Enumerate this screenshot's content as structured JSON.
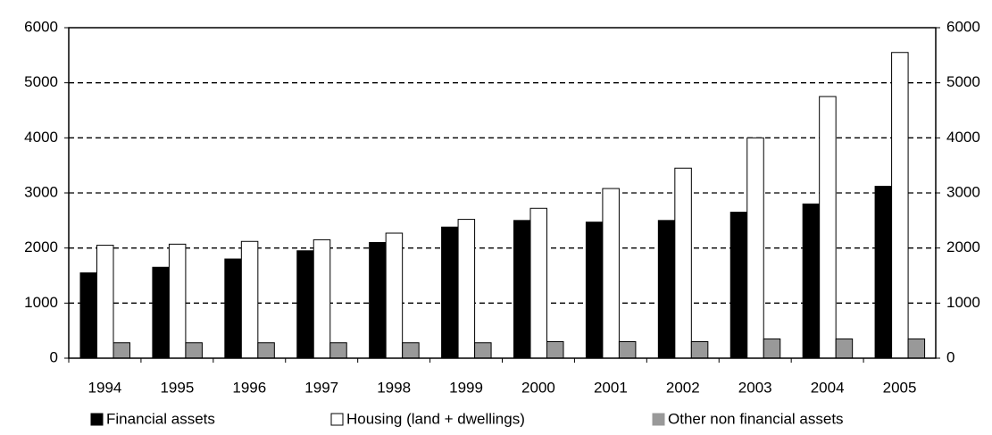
{
  "chart_data": {
    "type": "bar",
    "categories": [
      "1994",
      "1995",
      "1996",
      "1997",
      "1998",
      "1999",
      "2000",
      "2001",
      "2002",
      "2003",
      "2004",
      "2005"
    ],
    "series": [
      {
        "name": "Financial assets",
        "color": "#000000",
        "values": [
          1550,
          1650,
          1800,
          1950,
          2100,
          2380,
          2500,
          2470,
          2500,
          2650,
          2800,
          3120
        ]
      },
      {
        "name": "Housing (land + dwellings)",
        "color": "#ffffff",
        "values": [
          2050,
          2070,
          2120,
          2150,
          2270,
          2520,
          2720,
          3080,
          3450,
          4000,
          4750,
          5550
        ]
      },
      {
        "name": "Other non financial assets",
        "color": "#999999",
        "values": [
          280,
          280,
          280,
          280,
          280,
          280,
          300,
          300,
          300,
          350,
          350,
          350
        ]
      }
    ],
    "ylim": [
      0,
      6000
    ],
    "yticks": [
      0,
      1000,
      2000,
      3000,
      4000,
      5000,
      6000
    ],
    "y2lim": [
      0,
      6000
    ],
    "y2ticks": [
      0,
      1000,
      2000,
      3000,
      4000,
      5000,
      6000
    ],
    "grid": true,
    "legend": "bottom"
  }
}
